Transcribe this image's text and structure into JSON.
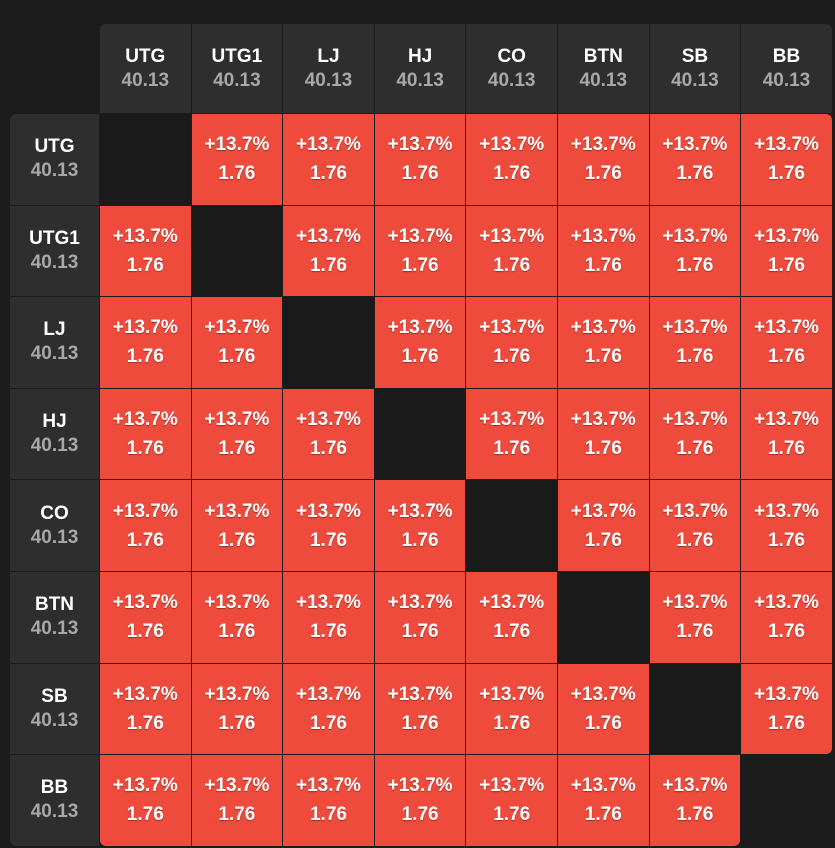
{
  "positions": [
    {
      "name": "UTG",
      "value": "40.13"
    },
    {
      "name": "UTG1",
      "value": "40.13"
    },
    {
      "name": "LJ",
      "value": "40.13"
    },
    {
      "name": "HJ",
      "value": "40.13"
    },
    {
      "name": "CO",
      "value": "40.13"
    },
    {
      "name": "BTN",
      "value": "40.13"
    },
    {
      "name": "SB",
      "value": "40.13"
    },
    {
      "name": "BB",
      "value": "40.13"
    }
  ],
  "cells": [
    [
      null,
      {
        "pct": "+13.7%",
        "val": "1.76"
      },
      {
        "pct": "+13.7%",
        "val": "1.76"
      },
      {
        "pct": "+13.7%",
        "val": "1.76"
      },
      {
        "pct": "+13.7%",
        "val": "1.76"
      },
      {
        "pct": "+13.7%",
        "val": "1.76"
      },
      {
        "pct": "+13.7%",
        "val": "1.76"
      },
      {
        "pct": "+13.7%",
        "val": "1.76"
      }
    ],
    [
      {
        "pct": "+13.7%",
        "val": "1.76"
      },
      null,
      {
        "pct": "+13.7%",
        "val": "1.76"
      },
      {
        "pct": "+13.7%",
        "val": "1.76"
      },
      {
        "pct": "+13.7%",
        "val": "1.76"
      },
      {
        "pct": "+13.7%",
        "val": "1.76"
      },
      {
        "pct": "+13.7%",
        "val": "1.76"
      },
      {
        "pct": "+13.7%",
        "val": "1.76"
      }
    ],
    [
      {
        "pct": "+13.7%",
        "val": "1.76"
      },
      {
        "pct": "+13.7%",
        "val": "1.76"
      },
      null,
      {
        "pct": "+13.7%",
        "val": "1.76"
      },
      {
        "pct": "+13.7%",
        "val": "1.76"
      },
      {
        "pct": "+13.7%",
        "val": "1.76"
      },
      {
        "pct": "+13.7%",
        "val": "1.76"
      },
      {
        "pct": "+13.7%",
        "val": "1.76"
      }
    ],
    [
      {
        "pct": "+13.7%",
        "val": "1.76"
      },
      {
        "pct": "+13.7%",
        "val": "1.76"
      },
      {
        "pct": "+13.7%",
        "val": "1.76"
      },
      null,
      {
        "pct": "+13.7%",
        "val": "1.76"
      },
      {
        "pct": "+13.7%",
        "val": "1.76"
      },
      {
        "pct": "+13.7%",
        "val": "1.76"
      },
      {
        "pct": "+13.7%",
        "val": "1.76"
      }
    ],
    [
      {
        "pct": "+13.7%",
        "val": "1.76"
      },
      {
        "pct": "+13.7%",
        "val": "1.76"
      },
      {
        "pct": "+13.7%",
        "val": "1.76"
      },
      {
        "pct": "+13.7%",
        "val": "1.76"
      },
      null,
      {
        "pct": "+13.7%",
        "val": "1.76"
      },
      {
        "pct": "+13.7%",
        "val": "1.76"
      },
      {
        "pct": "+13.7%",
        "val": "1.76"
      }
    ],
    [
      {
        "pct": "+13.7%",
        "val": "1.76"
      },
      {
        "pct": "+13.7%",
        "val": "1.76"
      },
      {
        "pct": "+13.7%",
        "val": "1.76"
      },
      {
        "pct": "+13.7%",
        "val": "1.76"
      },
      {
        "pct": "+13.7%",
        "val": "1.76"
      },
      null,
      {
        "pct": "+13.7%",
        "val": "1.76"
      },
      {
        "pct": "+13.7%",
        "val": "1.76"
      }
    ],
    [
      {
        "pct": "+13.7%",
        "val": "1.76"
      },
      {
        "pct": "+13.7%",
        "val": "1.76"
      },
      {
        "pct": "+13.7%",
        "val": "1.76"
      },
      {
        "pct": "+13.7%",
        "val": "1.76"
      },
      {
        "pct": "+13.7%",
        "val": "1.76"
      },
      {
        "pct": "+13.7%",
        "val": "1.76"
      },
      null,
      {
        "pct": "+13.7%",
        "val": "1.76"
      }
    ],
    [
      {
        "pct": "+13.7%",
        "val": "1.76"
      },
      {
        "pct": "+13.7%",
        "val": "1.76"
      },
      {
        "pct": "+13.7%",
        "val": "1.76"
      },
      {
        "pct": "+13.7%",
        "val": "1.76"
      },
      {
        "pct": "+13.7%",
        "val": "1.76"
      },
      {
        "pct": "+13.7%",
        "val": "1.76"
      },
      {
        "pct": "+13.7%",
        "val": "1.76"
      },
      null
    ]
  ],
  "colors": {
    "cell_fill": "#ef4b3d",
    "header_fill": "#2e2e2e",
    "diagonal_fill": "#1a1a1a",
    "background": "#1c1c1c",
    "header_value_text": "#a8a8a8"
  }
}
